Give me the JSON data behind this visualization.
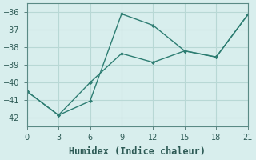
{
  "xlabel": "Humidex (Indice chaleur)",
  "line1_x": [
    0,
    3,
    6,
    9,
    12,
    15,
    18,
    21
  ],
  "line1_y": [
    -40.5,
    -41.85,
    -40.0,
    -38.35,
    -38.85,
    -38.2,
    -38.55,
    -36.15
  ],
  "line2_x": [
    0,
    3,
    6,
    9,
    12,
    15,
    18,
    21
  ],
  "line2_y": [
    -40.5,
    -41.85,
    -41.05,
    -36.1,
    -36.75,
    -38.2,
    -38.55,
    -36.15
  ],
  "line_color": "#2d7d72",
  "bg_color": "#d8eeed",
  "grid_color": "#b8d8d5",
  "xlim": [
    0,
    21
  ],
  "ylim": [
    -42.5,
    -35.5
  ],
  "xticks": [
    0,
    3,
    6,
    9,
    12,
    15,
    18,
    21
  ],
  "yticks": [
    -42,
    -41,
    -40,
    -39,
    -38,
    -37,
    -36
  ],
  "tick_fontsize": 7,
  "xlabel_fontsize": 8.5,
  "marker_size": 2.5,
  "linewidth": 1.0
}
